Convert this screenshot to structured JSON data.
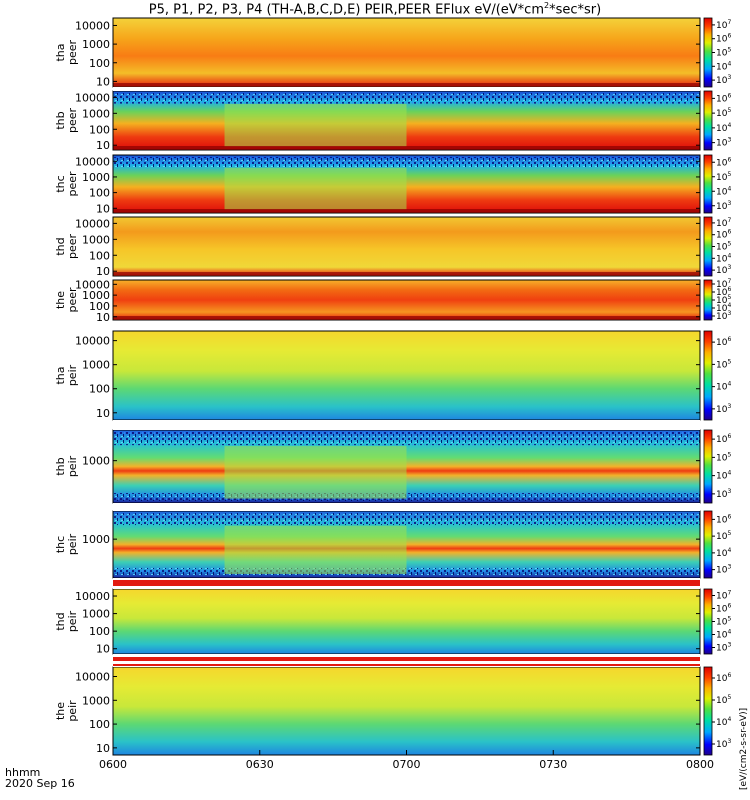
{
  "title": {
    "prefix": "P5, P1, P2, P3, P4 (TH-A,B,C,D,E) PEIR,PEER EFlux eV/(eV*cm",
    "sup": "2",
    "suffix": "*sec*sr)"
  },
  "footer": {
    "hhmm": "hhmm",
    "date": "2020 Sep 16"
  },
  "colorbar_units": "[eV/(cm2-s-sr-eV)]",
  "chart_data": {
    "type": "heatmap",
    "time_axis": {
      "ticks": [
        "0600",
        "0630",
        "0700",
        "0730",
        "0800"
      ],
      "range": [
        "06:00",
        "08:00"
      ]
    },
    "panels": [
      {
        "id": "tha_peer",
        "ylabel": [
          "tha",
          "peer"
        ],
        "ytick_labels": [
          "10",
          "100",
          "1000",
          "10000"
        ],
        "colorbar_ticks": [
          "10^3",
          "10^4",
          "10^5",
          "10^6",
          "10^7"
        ]
      },
      {
        "id": "thb_peer",
        "ylabel": [
          "thb",
          "peer"
        ],
        "ytick_labels": [
          "10",
          "100",
          "1000",
          "10000"
        ],
        "colorbar_ticks": [
          "10^3",
          "10^4",
          "10^5",
          "10^6"
        ]
      },
      {
        "id": "thc_peer",
        "ylabel": [
          "thc",
          "peer"
        ],
        "ytick_labels": [
          "10",
          "100",
          "1000",
          "10000"
        ],
        "colorbar_ticks": [
          "10^3",
          "10^4",
          "10^5",
          "10^6"
        ]
      },
      {
        "id": "thd_peer",
        "ylabel": [
          "thd",
          "peer"
        ],
        "ytick_labels": [
          "10",
          "100",
          "1000",
          "10000"
        ],
        "colorbar_ticks": [
          "10^3",
          "10^4",
          "10^5",
          "10^6",
          "10^7"
        ]
      },
      {
        "id": "the_peer",
        "ylabel": [
          "the",
          "peer"
        ],
        "ytick_labels": [
          "10",
          "100",
          "1000",
          "10000"
        ],
        "colorbar_ticks": [
          "10^3",
          "10^4",
          "10^5",
          "10^6",
          "10^7"
        ]
      },
      {
        "id": "tha_peir",
        "ylabel": [
          "tha",
          "peir"
        ],
        "ytick_labels": [
          "10",
          "100",
          "1000",
          "10000"
        ],
        "colorbar_ticks": [
          "10^3",
          "10^4",
          "10^5",
          "10^6"
        ]
      },
      {
        "id": "thb_peir",
        "ylabel": [
          "thb",
          "peir"
        ],
        "ytick_labels": [
          "1000"
        ],
        "colorbar_ticks": [
          "10^3",
          "10^4",
          "10^5",
          "10^6"
        ]
      },
      {
        "id": "thc_peir",
        "ylabel": [
          "thc",
          "peir"
        ],
        "ytick_labels": [
          "1000"
        ],
        "colorbar_ticks": [
          "10^3",
          "10^4",
          "10^5",
          "10^6"
        ]
      },
      {
        "id": "thd_peir",
        "ylabel": [
          "thd",
          "peir"
        ],
        "ytick_labels": [
          "10",
          "100",
          "1000",
          "10000"
        ],
        "colorbar_ticks": [
          "10^3",
          "10^4",
          "10^5",
          "10^6",
          "10^7"
        ]
      },
      {
        "id": "the_peir",
        "ylabel": [
          "the",
          "peir"
        ],
        "ytick_labels": [
          "10",
          "100",
          "1000",
          "10000"
        ],
        "colorbar_ticks": [
          "10^3",
          "10^4",
          "10^5",
          "10^6"
        ]
      }
    ]
  }
}
